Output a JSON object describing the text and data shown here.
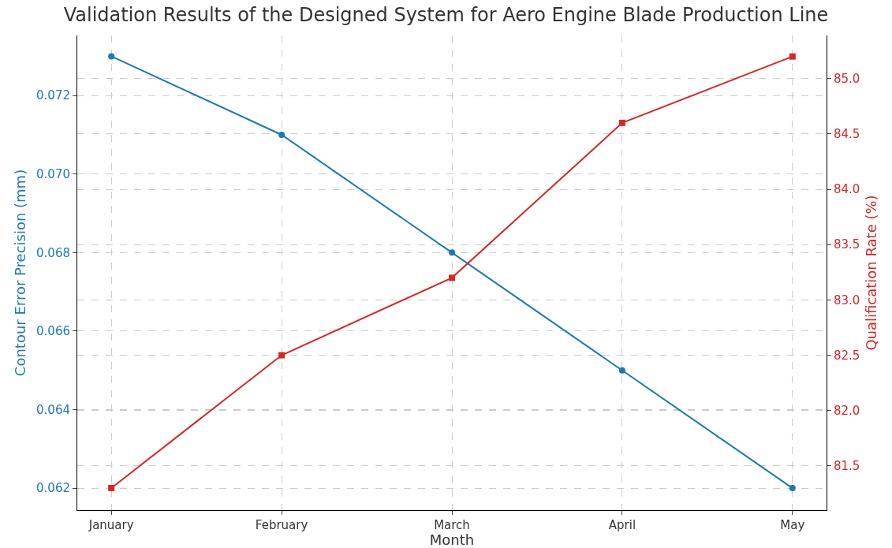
{
  "chart_data": {
    "type": "line",
    "title": "Validation Results of the Designed System for Aero Engine Blade Production Line",
    "xlabel": "Month",
    "ylabel": "Contour Error Precision (mm)",
    "y2label": "Qualification Rate (%)",
    "categories": [
      "January",
      "February",
      "March",
      "April",
      "May"
    ],
    "series": [
      {
        "color": "#1f77b4",
        "marker": "circle",
        "values": [
          0.073,
          0.071,
          0.068,
          0.065,
          0.062
        ]
      },
      {
        "color": "#d62728",
        "marker": "square",
        "axis": "y2",
        "values": [
          81.3,
          82.5,
          83.2,
          84.6,
          85.2
        ]
      }
    ],
    "ylim": [
      0.06144,
      0.07353
    ],
    "yticks": [
      0.062,
      0.064,
      0.066,
      0.068,
      {
        "value": 0.07,
        "label": "0.070"
      },
      0.072
    ],
    "y2lim": [
      81.1,
      85.39
    ],
    "y2ticks": [
      81.5,
      {
        "value": 82,
        "label": "82.0"
      },
      82.5,
      {
        "value": 83,
        "label": "83.0"
      },
      83.5,
      {
        "value": 84,
        "label": "84.0"
      },
      84.5,
      {
        "value": 85,
        "label": "85.0"
      }
    ],
    "grid": true,
    "line_style": "solid"
  }
}
